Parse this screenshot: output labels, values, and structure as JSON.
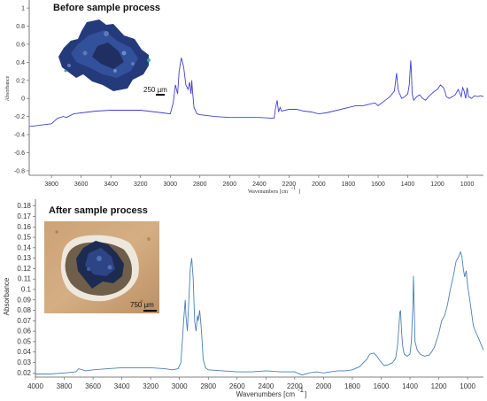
{
  "colors": {
    "top_series": "#3f3fd0",
    "bottom_series": "#4a7fb5",
    "axis": "#555555"
  },
  "chart_data": [
    {
      "type": "line",
      "title": "Before sample process",
      "xlabel": "Wavenumbers [cm",
      "xlabel_sup": "-1",
      "xlabel_close": "]",
      "ylabel": "Absorbance",
      "xlim": [
        3950,
        890
      ],
      "ylim": [
        -0.85,
        1.05
      ],
      "x_reversed": true,
      "grid": false,
      "xticks": [
        3800,
        3600,
        3400,
        3200,
        3000,
        2800,
        2600,
        2400,
        2200,
        2000,
        1800,
        1600,
        1400,
        1200,
        1000
      ],
      "yticks": [
        -0.8,
        -0.6,
        -0.4,
        -0.2,
        0,
        0.2,
        0.4,
        0.6,
        0.8,
        1
      ],
      "ytick_labels": [
        "-0.8",
        "-0.6",
        "-0.4",
        "-0.2",
        "0",
        "0.2",
        "0.4",
        "0.6",
        "0.8",
        "1"
      ],
      "inset": {
        "description": "micrograph",
        "scale_label": "250 µm"
      },
      "series": [
        {
          "x": [
            3950,
            3800,
            3760,
            3720,
            3700,
            3650,
            3600,
            3500,
            3400,
            3300,
            3200,
            3100,
            3050,
            3000,
            2980,
            2965,
            2950,
            2940,
            2925,
            2910,
            2895,
            2880,
            2870,
            2860,
            2855,
            2850,
            2840,
            2820,
            2800,
            2700,
            2600,
            2500,
            2400,
            2300,
            2290,
            2280,
            2270,
            2260,
            2250,
            2200,
            2150,
            2100,
            2050,
            2000,
            1950,
            1900,
            1850,
            1800,
            1750,
            1700,
            1650,
            1620,
            1600,
            1560,
            1520,
            1490,
            1475,
            1465,
            1455,
            1440,
            1420,
            1400,
            1390,
            1380,
            1375,
            1370,
            1360,
            1340,
            1320,
            1300,
            1280,
            1260,
            1240,
            1220,
            1200,
            1180,
            1160,
            1150,
            1140,
            1120,
            1100,
            1080,
            1060,
            1040,
            1030,
            1020,
            1010,
            1000,
            990,
            970,
            950,
            930,
            910,
            890
          ],
          "y": [
            -0.31,
            -0.28,
            -0.22,
            -0.2,
            -0.21,
            -0.17,
            -0.16,
            -0.14,
            -0.13,
            -0.13,
            -0.13,
            -0.15,
            -0.16,
            -0.17,
            -0.05,
            0.15,
            0.05,
            0.3,
            0.45,
            0.35,
            0.15,
            0.1,
            0.18,
            0.05,
            0.2,
            0.08,
            -0.1,
            -0.17,
            -0.18,
            -0.2,
            -0.21,
            -0.21,
            -0.21,
            -0.22,
            -0.1,
            -0.02,
            -0.15,
            -0.1,
            -0.14,
            -0.12,
            -0.12,
            -0.14,
            -0.15,
            -0.17,
            -0.16,
            -0.14,
            -0.12,
            -0.1,
            -0.08,
            -0.08,
            -0.06,
            -0.05,
            -0.08,
            -0.03,
            0.02,
            0.08,
            0.28,
            0.1,
            0.05,
            0.0,
            0.02,
            0.05,
            0.15,
            0.42,
            0.28,
            0.05,
            -0.02,
            0.02,
            0.04,
            0.0,
            -0.02,
            0.02,
            0.05,
            0.08,
            0.1,
            0.15,
            0.12,
            0.08,
            0.02,
            0.0,
            0.02,
            0.04,
            0.1,
            0.02,
            0.12,
            0.08,
            0.0,
            0.12,
            0.02,
            0.0,
            0.03,
            0.02,
            0.03,
            0.02
          ]
        }
      ]
    },
    {
      "type": "line",
      "title": "After sample process",
      "xlabel": "Wavenumbers [cm",
      "xlabel_sup": "-1",
      "xlabel_close": "]",
      "ylabel": "Absorbance",
      "xlim": [
        4000,
        890
      ],
      "ylim": [
        0.016,
        0.184
      ],
      "x_reversed": true,
      "grid": false,
      "xticks": [
        4000,
        3800,
        3600,
        3400,
        3200,
        3000,
        2800,
        2600,
        2400,
        2200,
        2000,
        1800,
        1600,
        1400,
        1200,
        1000
      ],
      "yticks": [
        0.02,
        0.03,
        0.04,
        0.05,
        0.06,
        0.07,
        0.08,
        0.09,
        0.1,
        0.11,
        0.12,
        0.13,
        0.14,
        0.15,
        0.16,
        0.17,
        0.18
      ],
      "ytick_labels": [
        "0.02",
        "0.03",
        "0.04",
        "0.05",
        "0.06",
        "0.07",
        "0.08",
        "0.09",
        "0.1",
        "0.11",
        "0.12",
        "0.13",
        "0.14",
        "0.15",
        "0.16",
        "0.17",
        "0.18"
      ],
      "inset": {
        "description": "micrograph",
        "scale_label": "750 µm"
      },
      "series": [
        {
          "x": [
            4000,
            3900,
            3800,
            3720,
            3700,
            3650,
            3600,
            3500,
            3400,
            3300,
            3200,
            3100,
            3050,
            3010,
            2990,
            2970,
            2960,
            2955,
            2945,
            2935,
            2925,
            2915,
            2905,
            2895,
            2885,
            2875,
            2870,
            2860,
            2850,
            2845,
            2835,
            2820,
            2800,
            2700,
            2600,
            2500,
            2400,
            2300,
            2200,
            2150,
            2100,
            2050,
            2000,
            1950,
            1900,
            1850,
            1800,
            1750,
            1700,
            1680,
            1650,
            1630,
            1610,
            1580,
            1550,
            1520,
            1500,
            1485,
            1470,
            1465,
            1458,
            1450,
            1440,
            1420,
            1400,
            1390,
            1380,
            1376,
            1372,
            1365,
            1350,
            1330,
            1300,
            1270,
            1250,
            1230,
            1200,
            1180,
            1160,
            1140,
            1120,
            1100,
            1080,
            1060,
            1050,
            1040,
            1030,
            1020,
            1010,
            1000,
            990,
            980,
            960,
            940,
            920,
            900,
            890
          ],
          "y": [
            0.019,
            0.019,
            0.02,
            0.021,
            0.024,
            0.022,
            0.023,
            0.024,
            0.025,
            0.025,
            0.025,
            0.024,
            0.023,
            0.024,
            0.03,
            0.072,
            0.09,
            0.075,
            0.06,
            0.09,
            0.12,
            0.13,
            0.11,
            0.07,
            0.06,
            0.075,
            0.07,
            0.08,
            0.065,
            0.055,
            0.033,
            0.025,
            0.023,
            0.022,
            0.021,
            0.021,
            0.022,
            0.021,
            0.021,
            0.018,
            0.02,
            0.021,
            0.02,
            0.021,
            0.022,
            0.022,
            0.023,
            0.026,
            0.033,
            0.038,
            0.039,
            0.036,
            0.032,
            0.027,
            0.028,
            0.03,
            0.034,
            0.048,
            0.078,
            0.08,
            0.058,
            0.045,
            0.038,
            0.036,
            0.038,
            0.05,
            0.085,
            0.113,
            0.09,
            0.05,
            0.042,
            0.038,
            0.036,
            0.037,
            0.04,
            0.045,
            0.058,
            0.07,
            0.075,
            0.085,
            0.1,
            0.112,
            0.127,
            0.132,
            0.136,
            0.132,
            0.12,
            0.112,
            0.118,
            0.104,
            0.095,
            0.085,
            0.065,
            0.058,
            0.052,
            0.045,
            0.042
          ]
        }
      ]
    }
  ]
}
